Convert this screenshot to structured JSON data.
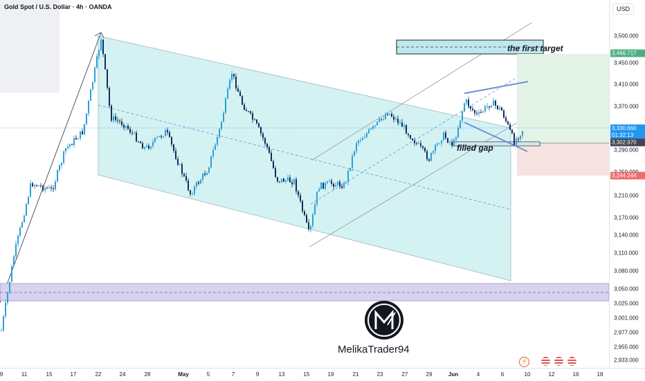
{
  "header": {
    "title": "Gold Spot / U.S. Dollar · 4h · OANDA",
    "currency": "USD"
  },
  "price_scale": {
    "labels": [
      "3,500.000",
      "3,450.000",
      "3,410.000",
      "3,370.000",
      "3,290.000",
      "3,250.000",
      "3,210.000",
      "3,170.000",
      "3,140.000",
      "3,110.000",
      "3,080.000",
      "3,050.000",
      "3,025.000",
      "3,001.000",
      "2,977.000",
      "2,955.000",
      "2,933.000"
    ],
    "tags": [
      {
        "text": "3,466.717",
        "color": "#4caf84"
      },
      {
        "text": "3,330.660",
        "sub": "01:32:13",
        "color": "#2196f3"
      },
      {
        "text": "3,302.970",
        "color": "#434651"
      },
      {
        "text": "3,244.244",
        "color": "#f06d6d"
      }
    ]
  },
  "time_scale": {
    "labels": [
      "9",
      "11",
      "15",
      "17",
      "22",
      "24",
      "28",
      "May",
      "5",
      "7",
      "9",
      "13",
      "15",
      "19",
      "21",
      "23",
      "27",
      "29",
      "Jun",
      "4",
      "6",
      "10",
      "12",
      "16",
      "18"
    ]
  },
  "annotations": {
    "target": "the first target",
    "gap": "filled gap"
  },
  "brand": {
    "name": "MelikaTrader94"
  },
  "chart_data": {
    "type": "candlestick",
    "symbol": "XAUUSD",
    "interval": "4h",
    "ylim": [
      2925,
      3520
    ],
    "levels": {
      "first_target": 3466.717,
      "last_price": 3330.66,
      "gap_level": 3302.97,
      "stop_level": 3244.244,
      "support_zone": [
        3030,
        3058
      ]
    }
  }
}
